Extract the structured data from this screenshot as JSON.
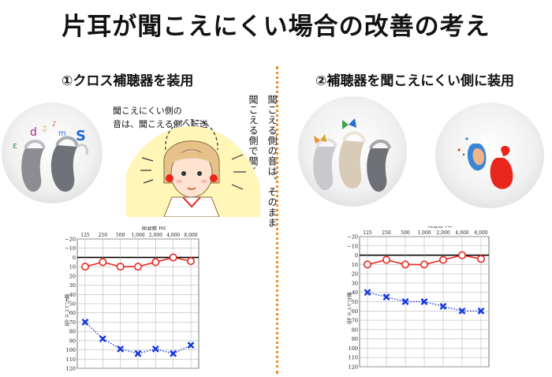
{
  "title": "片耳が聞こえにくい場合の改善の考え",
  "left": {
    "heading": "①クロス補聴器を装用",
    "note_lines": [
      "聞こえにくい側の",
      "音は、聞こえる側へ転送"
    ],
    "vertical_lines": [
      "聞こえる側の音は、そのまま",
      "聞こえる側で聞く"
    ]
  },
  "right": {
    "heading": "②補聴器を聞こえにくい側に装用"
  },
  "colors": {
    "divider": "#f08c2a",
    "right_ear": "#e8261e",
    "left_ear": "#1436e0",
    "sun": "#fff6b8"
  },
  "chart_data": [
    {
      "type": "line",
      "title": "周波数 Hz",
      "ylabel": "聴力レベル dB",
      "categories": [
        "125",
        "250",
        "500",
        "1,000",
        "2,000",
        "4,000",
        "8,000"
      ],
      "y_ticks": [
        -20,
        -10,
        0,
        10,
        20,
        30,
        40,
        50,
        60,
        70,
        80,
        90,
        100,
        110,
        120
      ],
      "ylim": [
        -20,
        120
      ],
      "series": [
        {
          "marker": "circle",
          "color": "#e8261e",
          "values": [
            10,
            5,
            10,
            10,
            5,
            0,
            4
          ]
        },
        {
          "marker": "cross",
          "color": "#1436e0",
          "values": [
            70,
            88,
            99,
            104,
            99,
            104,
            95
          ]
        }
      ]
    },
    {
      "type": "line",
      "title": "周波数 Hz",
      "ylabel": "聴力レベル dB",
      "categories": [
        "125",
        "250",
        "500",
        "1,000",
        "2,000",
        "4,000",
        "8,000"
      ],
      "y_ticks": [
        -20,
        -10,
        0,
        10,
        20,
        30,
        40,
        50,
        60,
        70,
        80,
        90,
        100,
        110,
        120
      ],
      "ylim": [
        -20,
        120
      ],
      "series": [
        {
          "marker": "circle",
          "color": "#e8261e",
          "values": [
            10,
            5,
            10,
            10,
            5,
            0,
            4
          ]
        },
        {
          "marker": "cross",
          "color": "#1436e0",
          "values": [
            40,
            45,
            50,
            50,
            55,
            60,
            60
          ]
        }
      ]
    }
  ]
}
